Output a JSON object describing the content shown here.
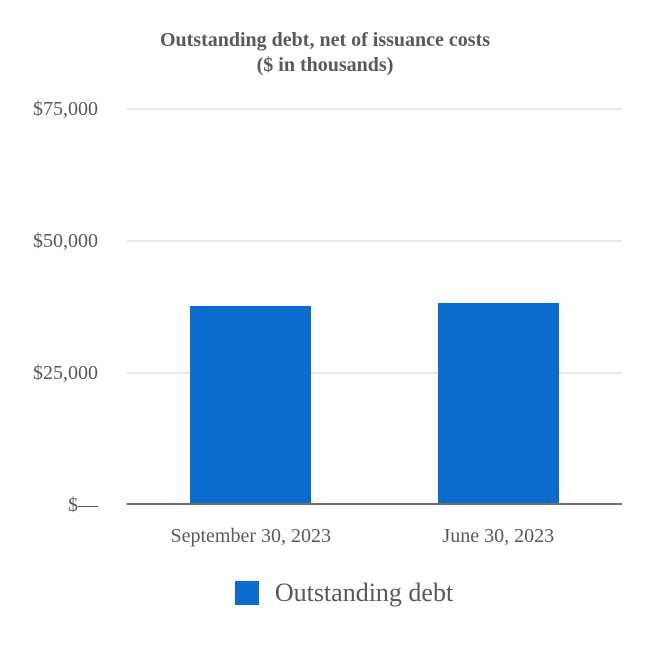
{
  "page": {
    "background": "#ffffff"
  },
  "colors": {
    "bar": "#0a6dce",
    "title_text": "#595959",
    "axis_text": "#595959",
    "legend_text": "#595959",
    "gridline": "#e8e8e8",
    "axis_line": "#6f6f6f"
  },
  "chart_data": {
    "type": "bar",
    "title": "Outstanding debt, net of issuance costs",
    "subtitle": "($ in thousands)",
    "categories": [
      "September 30, 2023",
      "June 30, 2023"
    ],
    "series": [
      {
        "name": "Outstanding debt",
        "values": [
          37700,
          38200
        ]
      }
    ],
    "ylim": [
      0,
      75000
    ],
    "yticks": [
      {
        "value": 0,
        "label": "$—"
      },
      {
        "value": 25000,
        "label": "$25,000"
      },
      {
        "value": 50000,
        "label": "$50,000"
      },
      {
        "value": 75000,
        "label": "$75,000"
      }
    ],
    "grid": true,
    "legend_position": "bottom",
    "legend": [
      {
        "label": "Outstanding debt",
        "color": "#0a6dce"
      }
    ]
  }
}
